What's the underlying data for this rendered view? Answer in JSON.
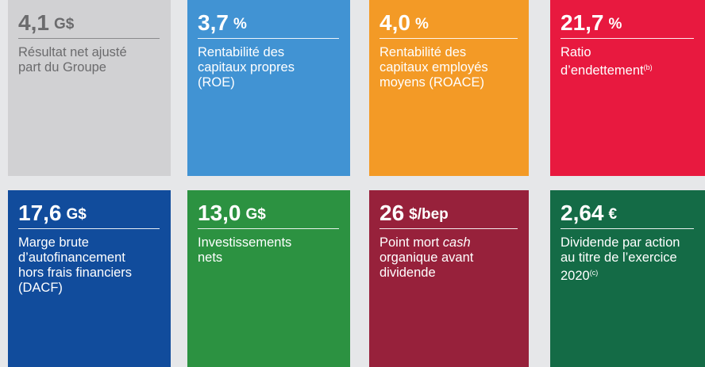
{
  "tiles": [
    {
      "value": "4,1",
      "unit": "G$",
      "color": "#d1d1d3",
      "label": [
        [
          "Résultat net ajusté"
        ],
        [
          "part du Groupe"
        ]
      ]
    },
    {
      "value": "3,7",
      "unit": "%",
      "color": "#4193d3",
      "label": [
        [
          "Rentabilité des"
        ],
        [
          "capitaux propres"
        ],
        [
          "(ROE)"
        ]
      ]
    },
    {
      "value": "4,0",
      "unit": "%",
      "color": "#f39a26",
      "label": [
        [
          "Rentabilité des"
        ],
        [
          "capitaux employés"
        ],
        [
          "moyens (ROACE)"
        ]
      ]
    },
    {
      "value": "21,7",
      "unit": "%",
      "color": "#e8193f",
      "label": [
        [
          "Ratio"
        ],
        [
          "d’endettement",
          {
            "text": "(b)",
            "style": "sup"
          }
        ]
      ]
    },
    {
      "value": "17,6",
      "unit": "G$",
      "color": "#114c9c",
      "label": [
        [
          "Marge brute"
        ],
        [
          "d’autofinancement"
        ],
        [
          "hors frais financiers"
        ],
        [
          "(DACF)"
        ]
      ]
    },
    {
      "value": "13,0",
      "unit": "G$",
      "color": "#2c9241",
      "label": [
        [
          "Investissements"
        ],
        [
          "nets"
        ]
      ]
    },
    {
      "value": "26",
      "unit": "$/bep",
      "color": "#97213b",
      "label": [
        [
          "Point mort ",
          {
            "text": "cash",
            "style": "italic"
          }
        ],
        [
          "organique avant"
        ],
        [
          "dividende"
        ]
      ]
    },
    {
      "value": "2,64",
      "unit": "€",
      "color": "#146b46",
      "label": [
        [
          "Dividende par action"
        ],
        [
          "au titre de l’exercice"
        ],
        [
          "2020",
          {
            "text": "(c)",
            "style": "sup"
          }
        ]
      ]
    }
  ]
}
